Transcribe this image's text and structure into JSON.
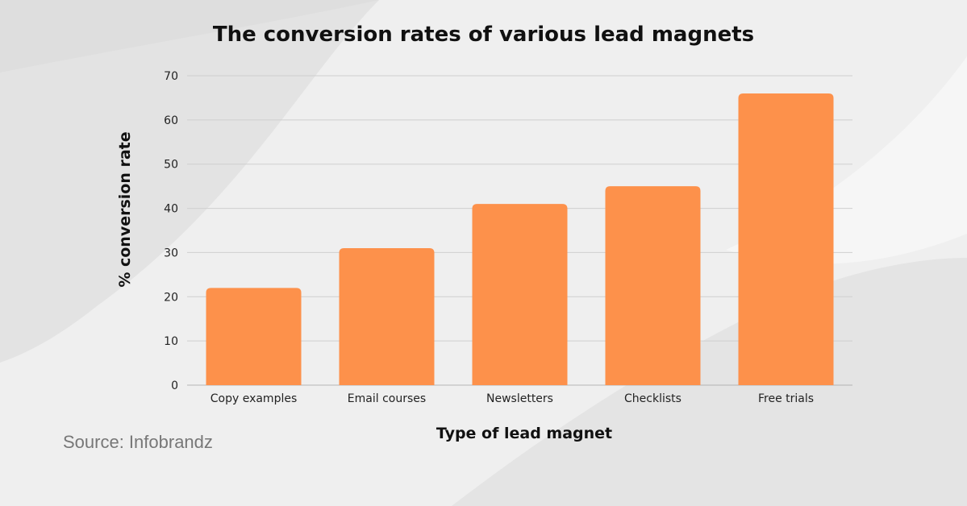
{
  "chart_data": {
    "type": "bar",
    "title": "The conversion rates of various lead magnets",
    "xlabel": "Type of lead magnet",
    "ylabel": "% conversion rate",
    "categories": [
      "Copy examples",
      "Email courses",
      "Newsletters",
      "Checklists",
      "Free trials"
    ],
    "values": [
      22,
      31,
      41,
      45,
      66
    ],
    "ylim": [
      0,
      70
    ],
    "yticks": [
      0,
      10,
      20,
      30,
      40,
      50,
      60,
      70
    ],
    "grid": true,
    "bar_color": "#fd914b"
  },
  "source": "Source: Infobrandz"
}
